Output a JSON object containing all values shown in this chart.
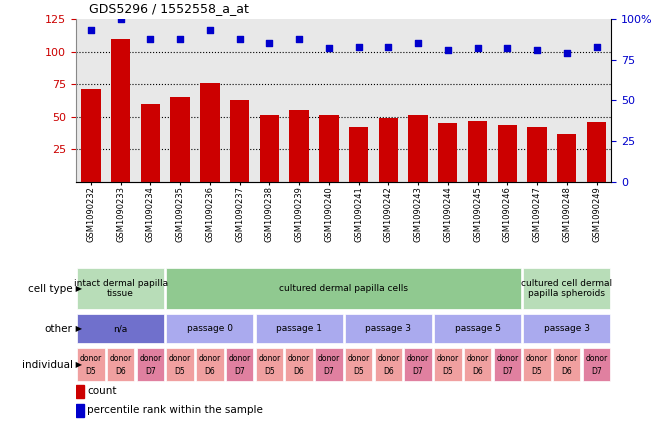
{
  "title": "GDS5296 / 1552558_a_at",
  "samples": [
    "GSM1090232",
    "GSM1090233",
    "GSM1090234",
    "GSM1090235",
    "GSM1090236",
    "GSM1090237",
    "GSM1090238",
    "GSM1090239",
    "GSM1090240",
    "GSM1090241",
    "GSM1090242",
    "GSM1090243",
    "GSM1090244",
    "GSM1090245",
    "GSM1090246",
    "GSM1090247",
    "GSM1090248",
    "GSM1090249"
  ],
  "counts": [
    71,
    110,
    60,
    65,
    76,
    63,
    51,
    55,
    51,
    42,
    49,
    51,
    45,
    47,
    44,
    42,
    37,
    46
  ],
  "percentiles": [
    93,
    100,
    88,
    88,
    93,
    88,
    85,
    88,
    82,
    83,
    83,
    85,
    81,
    82,
    82,
    81,
    79,
    83
  ],
  "ylim_left": [
    0,
    125
  ],
  "ylim_right": [
    0,
    100
  ],
  "yticks_left": [
    25,
    50,
    75,
    100,
    125
  ],
  "yticks_right": [
    0,
    25,
    50,
    75,
    100
  ],
  "bar_color": "#cc0000",
  "dot_color": "#0000cc",
  "cell_type_groups": [
    {
      "label": "intact dermal papilla\ntissue",
      "start": 0,
      "end": 3,
      "color": "#b8ddb8"
    },
    {
      "label": "cultured dermal papilla cells",
      "start": 3,
      "end": 15,
      "color": "#90c990"
    },
    {
      "label": "cultured cell dermal\npapilla spheroids",
      "start": 15,
      "end": 18,
      "color": "#b8ddb8"
    }
  ],
  "other_groups": [
    {
      "label": "n/a",
      "start": 0,
      "end": 3,
      "color": "#7070cc"
    },
    {
      "label": "passage 0",
      "start": 3,
      "end": 6,
      "color": "#aaaaee"
    },
    {
      "label": "passage 1",
      "start": 6,
      "end": 9,
      "color": "#aaaaee"
    },
    {
      "label": "passage 3",
      "start": 9,
      "end": 12,
      "color": "#aaaaee"
    },
    {
      "label": "passage 5",
      "start": 12,
      "end": 15,
      "color": "#aaaaee"
    },
    {
      "label": "passage 3",
      "start": 15,
      "end": 18,
      "color": "#aaaaee"
    }
  ],
  "individual_donors": [
    "D5",
    "D6",
    "D7",
    "D5",
    "D6",
    "D7",
    "D5",
    "D6",
    "D7",
    "D5",
    "D6",
    "D7",
    "D5",
    "D6",
    "D7",
    "D5",
    "D6",
    "D7"
  ],
  "individual_colors": [
    "#f0a0a0",
    "#f0a0a0",
    "#e080a0",
    "#f0a0a0",
    "#f0a0a0",
    "#e080a0",
    "#f0a0a0",
    "#f0a0a0",
    "#e080a0",
    "#f0a0a0",
    "#f0a0a0",
    "#e080a0",
    "#f0a0a0",
    "#f0a0a0",
    "#e080a0",
    "#f0a0a0",
    "#f0a0a0",
    "#e080a0"
  ],
  "row_labels": [
    "cell type",
    "other",
    "individual"
  ],
  "bg_color": "#ffffff",
  "plot_bg": "#e8e8e8"
}
